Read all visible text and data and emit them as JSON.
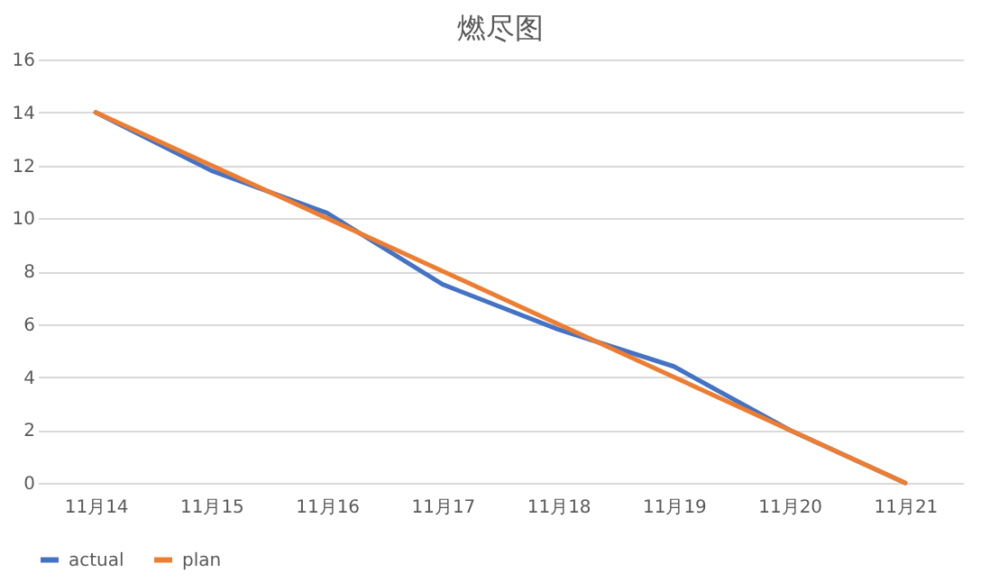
{
  "chart_data": {
    "type": "line",
    "title": "燃尽图",
    "categories": [
      "11月14",
      "11月15",
      "11月16",
      "11月17",
      "11月18",
      "11月19",
      "11月20",
      "11月21"
    ],
    "series": [
      {
        "name": "actual",
        "color": "#4472c4",
        "values": [
          14,
          11.8,
          10.2,
          7.5,
          5.8,
          4.4,
          2,
          0
        ]
      },
      {
        "name": "plan",
        "color": "#ed7d31",
        "values": [
          14,
          12,
          10,
          8,
          6,
          4,
          2,
          0
        ]
      }
    ],
    "ylim": [
      0,
      16
    ],
    "yticks": [
      0,
      2,
      4,
      6,
      8,
      10,
      12,
      14,
      16
    ],
    "grid": "y",
    "legend": "bottom",
    "marker": "none",
    "line_style": "solid"
  }
}
